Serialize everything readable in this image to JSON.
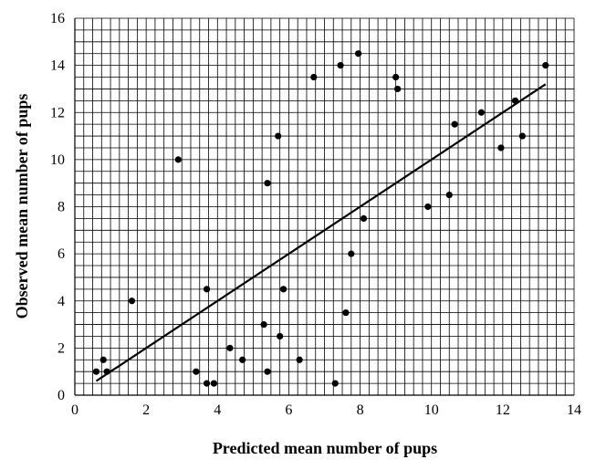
{
  "chart_data": {
    "type": "scatter",
    "title": "",
    "xlabel": "Predicted mean number of pups",
    "ylabel": "Observed mean number of pups",
    "xlim": [
      0,
      14
    ],
    "ylim": [
      0,
      16
    ],
    "x_ticks": [
      0,
      2,
      4,
      6,
      8,
      10,
      12,
      14
    ],
    "y_ticks": [
      0,
      2,
      4,
      6,
      8,
      10,
      12,
      14,
      16
    ],
    "x_tick_labels": [
      "0",
      "2",
      "4",
      "6",
      "8",
      "10",
      "12",
      "14"
    ],
    "y_tick_labels": [
      "0",
      "2",
      "4",
      "6",
      "8",
      "10",
      "12",
      "14",
      "16"
    ],
    "x_minor_step": 0.25,
    "y_minor_step": 0.5,
    "grid": true,
    "legend": "none",
    "marker_color": "#000000",
    "points": [
      {
        "x": 0.6,
        "y": 1.0
      },
      {
        "x": 0.8,
        "y": 1.5
      },
      {
        "x": 0.9,
        "y": 1.0
      },
      {
        "x": 1.6,
        "y": 4.0
      },
      {
        "x": 2.9,
        "y": 10.0
      },
      {
        "x": 3.4,
        "y": 1.0
      },
      {
        "x": 3.7,
        "y": 0.5
      },
      {
        "x": 3.7,
        "y": 4.5
      },
      {
        "x": 3.9,
        "y": 0.5
      },
      {
        "x": 4.35,
        "y": 2.0
      },
      {
        "x": 4.7,
        "y": 1.5
      },
      {
        "x": 5.3,
        "y": 3.0
      },
      {
        "x": 5.4,
        "y": 1.0
      },
      {
        "x": 5.4,
        "y": 9.0
      },
      {
        "x": 5.7,
        "y": 11.0
      },
      {
        "x": 5.75,
        "y": 2.5
      },
      {
        "x": 5.85,
        "y": 4.5
      },
      {
        "x": 6.3,
        "y": 1.5
      },
      {
        "x": 6.7,
        "y": 13.5
      },
      {
        "x": 7.3,
        "y": 0.5
      },
      {
        "x": 7.45,
        "y": 14.0
      },
      {
        "x": 7.6,
        "y": 3.5
      },
      {
        "x": 7.75,
        "y": 6.0
      },
      {
        "x": 7.95,
        "y": 14.5
      },
      {
        "x": 8.1,
        "y": 7.5
      },
      {
        "x": 9.0,
        "y": 13.5
      },
      {
        "x": 9.05,
        "y": 13.0
      },
      {
        "x": 9.9,
        "y": 8.0
      },
      {
        "x": 10.5,
        "y": 8.5
      },
      {
        "x": 10.65,
        "y": 11.5
      },
      {
        "x": 11.4,
        "y": 12.0
      },
      {
        "x": 11.95,
        "y": 10.5
      },
      {
        "x": 12.35,
        "y": 12.5
      },
      {
        "x": 12.55,
        "y": 11.0
      },
      {
        "x": 13.2,
        "y": 14.0
      }
    ],
    "trendline": {
      "x": [
        0.6,
        13.2
      ],
      "y": [
        0.6,
        13.2
      ]
    }
  }
}
